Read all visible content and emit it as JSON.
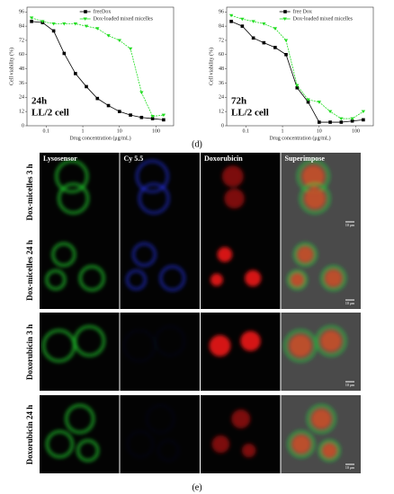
{
  "chart_data": [
    {
      "type": "line",
      "title": null,
      "xlabel": "Drug concentration (μg/mL)",
      "ylabel": "Cell viability (%)",
      "annotations": [
        "24h",
        "LL/2 cell"
      ],
      "xscale": "log",
      "legend": "upper right",
      "x": [
        0.04,
        0.08,
        0.16,
        0.31,
        0.63,
        1.25,
        2.5,
        5,
        10,
        20,
        40,
        80,
        160
      ],
      "series": [
        {
          "name": "freeDox",
          "color": "#000000",
          "marker": "square",
          "values": [
            88,
            87,
            80,
            61,
            44,
            33,
            23,
            17,
            12,
            9,
            7,
            6,
            5
          ]
        },
        {
          "name": "Dox-loaded mixed micelles",
          "color": "#22dd22",
          "marker": "triangle",
          "values": [
            91,
            88,
            86,
            86,
            86,
            84,
            82,
            76,
            72,
            65,
            28,
            8,
            9
          ]
        }
      ],
      "xlim": [
        0.03,
        300
      ],
      "xticks": [
        0.1,
        1,
        10,
        100
      ],
      "ylim": [
        0,
        100
      ],
      "yticks": [
        0,
        12,
        24,
        36,
        48,
        60,
        72,
        84,
        96
      ]
    },
    {
      "type": "line",
      "title": null,
      "xlabel": "Drug concentration (μg/mL)",
      "ylabel": "Cell viability (%)",
      "annotations": [
        "72h",
        "LL/2 cell"
      ],
      "xscale": "log",
      "legend": "upper right",
      "x": [
        0.04,
        0.08,
        0.16,
        0.31,
        0.63,
        1.25,
        2.5,
        5,
        10,
        20,
        40,
        80,
        160
      ],
      "series": [
        {
          "name": "free Dox",
          "color": "#000000",
          "marker": "square",
          "values": [
            88,
            84,
            74,
            70,
            66,
            60,
            32,
            20,
            3,
            3,
            3,
            4,
            5
          ]
        },
        {
          "name": "Dox-loaded mixed micelles",
          "color": "#22dd22",
          "marker": "triangle",
          "values": [
            93,
            90,
            88,
            86,
            82,
            72,
            34,
            22,
            20,
            12,
            6,
            6,
            12
          ]
        }
      ],
      "xlim": [
        0.03,
        300
      ],
      "xticks": [
        0.1,
        1,
        10,
        100
      ],
      "ylim": [
        0,
        100
      ],
      "yticks": [
        0,
        12,
        24,
        36,
        48,
        60,
        72,
        84,
        96
      ]
    }
  ],
  "figure": {
    "panel_d_label": "(d)",
    "panel_e_label": "(e)",
    "columns": [
      "Lysosensor",
      "Cy 5.5",
      "Doxorubicin",
      "Superimpose"
    ],
    "rows": [
      "Dox-micelles 3 h",
      "Dox-micelles 24 h",
      "Doxorubicin 3 h",
      "Doxorubicin 24 h"
    ],
    "scale_bar": "10 μm"
  }
}
